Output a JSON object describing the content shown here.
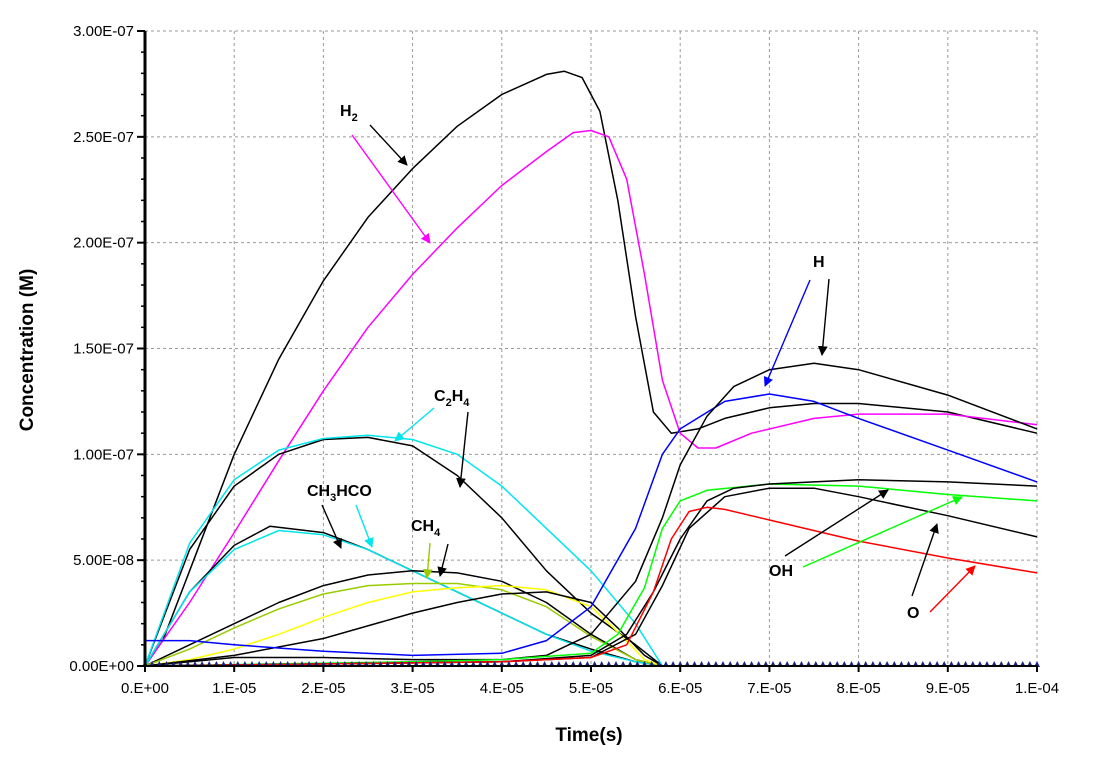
{
  "chart_data": {
    "type": "line",
    "xlabel": "Time(s)",
    "ylabel": "Concentration (M)",
    "xlim": [
      0,
      0.0001
    ],
    "ylim": [
      0,
      3e-07
    ],
    "grid": true,
    "x_ticks": [
      0,
      1e-05,
      2e-05,
      3e-05,
      4e-05,
      5e-05,
      6e-05,
      7e-05,
      8e-05,
      9e-05,
      0.0001
    ],
    "x_tick_labels": [
      "0.E+00",
      "1.E-05",
      "2.E-05",
      "3.E-05",
      "4.E-05",
      "5.E-05",
      "6.E-05",
      "7.E-05",
      "8.E-05",
      "9.E-05",
      "1.E-04"
    ],
    "y_ticks": [
      0,
      5e-08,
      1e-07,
      1.5e-07,
      2e-07,
      2.5e-07,
      3e-07
    ],
    "y_tick_labels": [
      "0.00E+00",
      "5.00E-08",
      "1.00E-07",
      "1.50E-07",
      "2.00E-07",
      "2.50E-07",
      "3.00E-07"
    ],
    "series": [
      {
        "color": "#000000",
        "points": [
          [
            0,
            0
          ],
          [
            2e-06,
            1.2e-08
          ],
          [
            5e-06,
            4.5e-08
          ],
          [
            1e-05,
            1e-07
          ],
          [
            1.5e-05,
            1.45e-07
          ],
          [
            2e-05,
            1.82e-07
          ],
          [
            2.5e-05,
            2.12e-07
          ],
          [
            3e-05,
            2.35e-07
          ],
          [
            3.5e-05,
            2.55e-07
          ],
          [
            4e-05,
            2.7e-07
          ],
          [
            4.5e-05,
            2.795e-07
          ],
          [
            4.7e-05,
            2.81e-07
          ],
          [
            4.9e-05,
            2.78e-07
          ],
          [
            5.1e-05,
            2.62e-07
          ],
          [
            5.3e-05,
            2.2e-07
          ],
          [
            5.5e-05,
            1.65e-07
          ],
          [
            5.7e-05,
            1.2e-07
          ],
          [
            5.9e-05,
            1.1e-07
          ],
          [
            6.2e-05,
            1.12e-07
          ],
          [
            6.5e-05,
            1.17e-07
          ],
          [
            7e-05,
            1.22e-07
          ],
          [
            7.5e-05,
            1.24e-07
          ],
          [
            8e-05,
            1.24e-07
          ],
          [
            9e-05,
            1.2e-07
          ],
          [
            0.0001,
            1.1e-07
          ]
        ]
      },
      {
        "color": "#ff00ff",
        "points": [
          [
            0,
            0
          ],
          [
            5e-06,
            3e-08
          ],
          [
            1e-05,
            6.3e-08
          ],
          [
            1.5e-05,
            9.7e-08
          ],
          [
            2e-05,
            1.3e-07
          ],
          [
            2.5e-05,
            1.6e-07
          ],
          [
            3e-05,
            1.85e-07
          ],
          [
            3.5e-05,
            2.07e-07
          ],
          [
            4e-05,
            2.27e-07
          ],
          [
            4.5e-05,
            2.43e-07
          ],
          [
            4.8e-05,
            2.52e-07
          ],
          [
            5e-05,
            2.53e-07
          ],
          [
            5.2e-05,
            2.5e-07
          ],
          [
            5.4e-05,
            2.3e-07
          ],
          [
            5.6e-05,
            1.85e-07
          ],
          [
            5.8e-05,
            1.35e-07
          ],
          [
            6e-05,
            1.1e-07
          ],
          [
            6.2e-05,
            1.03e-07
          ],
          [
            6.4e-05,
            1.03e-07
          ],
          [
            6.8e-05,
            1.1e-07
          ],
          [
            7.5e-05,
            1.17e-07
          ],
          [
            8e-05,
            1.19e-07
          ],
          [
            9e-05,
            1.19e-07
          ],
          [
            0.0001,
            1.14e-07
          ]
        ]
      },
      {
        "color": "#000000",
        "points": [
          [
            0,
            0
          ],
          [
            5e-06,
            5.5e-08
          ],
          [
            1e-05,
            8.5e-08
          ],
          [
            1.5e-05,
            1e-07
          ],
          [
            2e-05,
            1.07e-07
          ],
          [
            2.5e-05,
            1.08e-07
          ],
          [
            3e-05,
            1.04e-07
          ],
          [
            3.5e-05,
            9e-08
          ],
          [
            4e-05,
            7e-08
          ],
          [
            4.5e-05,
            4.5e-08
          ],
          [
            5e-05,
            2.5e-08
          ],
          [
            5.5e-05,
            1e-08
          ],
          [
            5.8e-05,
            0
          ]
        ]
      },
      {
        "color": "#00e5ee",
        "points": [
          [
            0,
            0
          ],
          [
            5e-06,
            5.8e-08
          ],
          [
            1e-05,
            8.8e-08
          ],
          [
            1.5e-05,
            1.02e-07
          ],
          [
            2e-05,
            1.075e-07
          ],
          [
            2.5e-05,
            1.09e-07
          ],
          [
            3e-05,
            1.07e-07
          ],
          [
            3.5e-05,
            1e-07
          ],
          [
            4e-05,
            8.5e-08
          ],
          [
            4.5e-05,
            6.5e-08
          ],
          [
            5e-05,
            4.5e-08
          ],
          [
            5.5e-05,
            2e-08
          ],
          [
            5.8e-05,
            0
          ]
        ]
      },
      {
        "color": "#000000",
        "points": [
          [
            0,
            0
          ],
          [
            5e-06,
            3.5e-08
          ],
          [
            1e-05,
            5.7e-08
          ],
          [
            1.4e-05,
            6.6e-08
          ],
          [
            2e-05,
            6.3e-08
          ],
          [
            2.5e-05,
            5.5e-08
          ],
          [
            3e-05,
            4.5e-08
          ],
          [
            3.5e-05,
            3.5e-08
          ],
          [
            4e-05,
            2.5e-08
          ],
          [
            4.5e-05,
            1.5e-08
          ],
          [
            5e-05,
            8e-09
          ],
          [
            5.5e-05,
            2e-09
          ],
          [
            5.8e-05,
            0
          ]
        ]
      },
      {
        "color": "#00e5ee",
        "points": [
          [
            0,
            0
          ],
          [
            5e-06,
            3.5e-08
          ],
          [
            1e-05,
            5.5e-08
          ],
          [
            1.5e-05,
            6.4e-08
          ],
          [
            2e-05,
            6.2e-08
          ],
          [
            2.5e-05,
            5.5e-08
          ],
          [
            3e-05,
            4.5e-08
          ],
          [
            3.5e-05,
            3.5e-08
          ],
          [
            4e-05,
            2.5e-08
          ],
          [
            4.5e-05,
            1.5e-08
          ],
          [
            5e-05,
            7e-09
          ],
          [
            5.5e-05,
            2e-09
          ],
          [
            5.8e-05,
            0
          ]
        ]
      },
      {
        "color": "#000000",
        "points": [
          [
            0,
            0
          ],
          [
            5e-06,
            1e-08
          ],
          [
            1e-05,
            2e-08
          ],
          [
            1.5e-05,
            3e-08
          ],
          [
            2e-05,
            3.8e-08
          ],
          [
            2.5e-05,
            4.3e-08
          ],
          [
            3e-05,
            4.5e-08
          ],
          [
            3.5e-05,
            4.4e-08
          ],
          [
            4e-05,
            4e-08
          ],
          [
            4.5e-05,
            3e-08
          ],
          [
            5e-05,
            1.5e-08
          ],
          [
            5.5e-05,
            3e-09
          ],
          [
            5.8e-05,
            0
          ]
        ]
      },
      {
        "color": "#99cc00",
        "points": [
          [
            0,
            0
          ],
          [
            5e-06,
            8e-09
          ],
          [
            1e-05,
            1.8e-08
          ],
          [
            1.5e-05,
            2.7e-08
          ],
          [
            2e-05,
            3.4e-08
          ],
          [
            2.5e-05,
            3.8e-08
          ],
          [
            3e-05,
            3.9e-08
          ],
          [
            3.5e-05,
            3.9e-08
          ],
          [
            4e-05,
            3.6e-08
          ],
          [
            4.5e-05,
            2.8e-08
          ],
          [
            5e-05,
            1.4e-08
          ],
          [
            5.5e-05,
            3e-09
          ],
          [
            5.8e-05,
            0
          ]
        ]
      },
      {
        "color": "#ffff00",
        "points": [
          [
            0,
            0
          ],
          [
            5e-06,
            3e-09
          ],
          [
            1e-05,
            8e-09
          ],
          [
            1.5e-05,
            1.5e-08
          ],
          [
            2e-05,
            2.3e-08
          ],
          [
            2.5e-05,
            3e-08
          ],
          [
            3e-05,
            3.5e-08
          ],
          [
            3.5e-05,
            3.7e-08
          ],
          [
            4e-05,
            3.8e-08
          ],
          [
            4.5e-05,
            3.6e-08
          ],
          [
            5e-05,
            2.8e-08
          ],
          [
            5.3e-05,
            1.6e-08
          ],
          [
            5.6e-05,
            3e-09
          ],
          [
            5.8e-05,
            0
          ]
        ]
      },
      {
        "color": "#000000",
        "points": [
          [
            0,
            0
          ],
          [
            1e-05,
            5e-09
          ],
          [
            2e-05,
            1.3e-08
          ],
          [
            3e-05,
            2.5e-08
          ],
          [
            3.5e-05,
            3e-08
          ],
          [
            4e-05,
            3.4e-08
          ],
          [
            4.5e-05,
            3.5e-08
          ],
          [
            5e-05,
            3e-08
          ],
          [
            5.3e-05,
            1.8e-08
          ],
          [
            5.6e-05,
            5e-09
          ],
          [
            5.8e-05,
            0
          ]
        ]
      },
      {
        "color": "#0000ff",
        "points": [
          [
            0,
            1.2e-08
          ],
          [
            5e-06,
            1.2e-08
          ],
          [
            1e-05,
            1e-08
          ],
          [
            2e-05,
            7e-09
          ],
          [
            3e-05,
            5e-09
          ],
          [
            4e-05,
            6e-09
          ],
          [
            4.5e-05,
            1.2e-08
          ],
          [
            5e-05,
            2.8e-08
          ],
          [
            5.5e-05,
            6.5e-08
          ],
          [
            5.8e-05,
            1e-07
          ],
          [
            6e-05,
            1.12e-07
          ],
          [
            6.5e-05,
            1.25e-07
          ],
          [
            7e-05,
            1.285e-07
          ],
          [
            7.5e-05,
            1.25e-07
          ],
          [
            8e-05,
            1.17e-07
          ],
          [
            9e-05,
            1.02e-07
          ],
          [
            0.0001,
            8.7e-08
          ]
        ]
      },
      {
        "color": "#000000",
        "points": [
          [
            0,
            0
          ],
          [
            1e-05,
            4e-09
          ],
          [
            2e-05,
            4e-09
          ],
          [
            3e-05,
            3e-09
          ],
          [
            4e-05,
            3e-09
          ],
          [
            4.5e-05,
            5e-09
          ],
          [
            5e-05,
            1.5e-08
          ],
          [
            5.5e-05,
            4e-08
          ],
          [
            5.8e-05,
            7e-08
          ],
          [
            6e-05,
            9.5e-08
          ],
          [
            6.3e-05,
            1.18e-07
          ],
          [
            6.6e-05,
            1.32e-07
          ],
          [
            7e-05,
            1.4e-07
          ],
          [
            7.5e-05,
            1.43e-07
          ],
          [
            8e-05,
            1.4e-07
          ],
          [
            9e-05,
            1.28e-07
          ],
          [
            0.0001,
            1.12e-07
          ]
        ]
      },
      {
        "color": "#00ff00",
        "points": [
          [
            0,
            0
          ],
          [
            3e-05,
            2e-09
          ],
          [
            4e-05,
            3e-09
          ],
          [
            5e-05,
            6e-09
          ],
          [
            5.3e-05,
            1.5e-08
          ],
          [
            5.6e-05,
            3.7e-08
          ],
          [
            5.8e-05,
            6.5e-08
          ],
          [
            6e-05,
            7.8e-08
          ],
          [
            6.3e-05,
            8.3e-08
          ],
          [
            7e-05,
            8.6e-08
          ],
          [
            8e-05,
            8.5e-08
          ],
          [
            9e-05,
            8.1e-08
          ],
          [
            0.0001,
            7.8e-08
          ]
        ]
      },
      {
        "color": "#000000",
        "points": [
          [
            0,
            0
          ],
          [
            4e-05,
            2e-09
          ],
          [
            5e-05,
            5e-09
          ],
          [
            5.4e-05,
            1.5e-08
          ],
          [
            5.7e-05,
            3.5e-08
          ],
          [
            6e-05,
            6e-08
          ],
          [
            6.3e-05,
            7.8e-08
          ],
          [
            6.6e-05,
            8.4e-08
          ],
          [
            7e-05,
            8.6e-08
          ],
          [
            8e-05,
            8.8e-08
          ],
          [
            9e-05,
            8.7e-08
          ],
          [
            0.0001,
            8.5e-08
          ]
        ]
      },
      {
        "color": "#000000",
        "points": [
          [
            0,
            0
          ],
          [
            4e-05,
            2e-09
          ],
          [
            5e-05,
            4e-09
          ],
          [
            5.5e-05,
            1.5e-08
          ],
          [
            5.8e-05,
            3.8e-08
          ],
          [
            6.1e-05,
            6.5e-08
          ],
          [
            6.5e-05,
            8e-08
          ],
          [
            7e-05,
            8.4e-08
          ],
          [
            7.5e-05,
            8.4e-08
          ],
          [
            8e-05,
            8e-08
          ],
          [
            9e-05,
            7.1e-08
          ],
          [
            0.0001,
            6.1e-08
          ]
        ]
      },
      {
        "color": "#ff0000",
        "points": [
          [
            0,
            0
          ],
          [
            4e-05,
            2e-09
          ],
          [
            5e-05,
            4e-09
          ],
          [
            5.4e-05,
            1e-08
          ],
          [
            5.7e-05,
            3.5e-08
          ],
          [
            5.9e-05,
            6e-08
          ],
          [
            6.1e-05,
            7.3e-08
          ],
          [
            6.3e-05,
            7.5e-08
          ],
          [
            6.5e-05,
            7.4e-08
          ],
          [
            7e-05,
            6.9e-08
          ],
          [
            8e-05,
            5.9e-08
          ],
          [
            9e-05,
            5.1e-08
          ],
          [
            0.0001,
            4.4e-08
          ]
        ]
      }
    ],
    "annotations": [
      {
        "main": "H",
        "sub": "2"
      },
      {
        "main": "H",
        "sub": ""
      },
      {
        "main": "C",
        "sub": "2",
        "main2": "H",
        "sub2": "4"
      },
      {
        "main": "CH",
        "sub": "3",
        "main2": "HCO",
        "sub2": ""
      },
      {
        "main": "CH",
        "sub": "4"
      },
      {
        "main": "OH",
        "sub": ""
      },
      {
        "main": "O",
        "sub": ""
      }
    ]
  }
}
